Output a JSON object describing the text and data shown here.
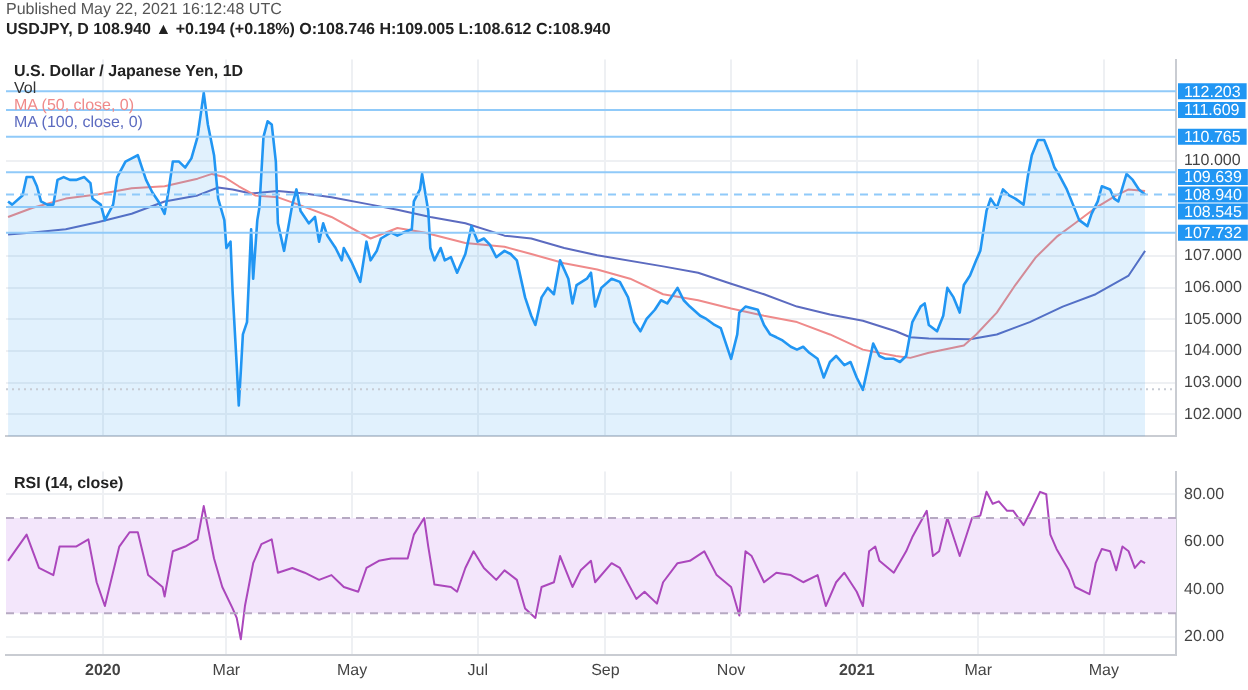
{
  "chart_data": [
    {
      "type": "area",
      "title": "U.S. Dollar / Japanese Yen, 1D",
      "subtitle": "USDJPY, D 108.940 ▲ +0.194 (+0.18%) O:108.746 H:109.005 L:108.612 C:108.940",
      "annotations": [
        "Published May 22, 2021 16:12:48 UTC",
        "Vol"
      ],
      "series": [
        {
          "color": "#2196f3",
          "x": [
            "2019-11-16",
            "2019-11-18",
            "2019-11-23",
            "2019-11-25",
            "2019-11-28",
            "2019-11-30",
            "2019-12-02",
            "2019-12-05",
            "2019-12-08",
            "2019-12-10",
            "2019-12-13",
            "2019-12-16",
            "2019-12-19",
            "2019-12-23",
            "2019-12-26",
            "2019-12-27",
            "2019-12-31",
            "2020-01-02",
            "2020-01-06",
            "2020-01-08",
            "2020-01-12",
            "2020-01-15",
            "2020-01-18",
            "2020-01-20",
            "2020-01-22",
            "2020-01-25",
            "2020-01-28",
            "2020-01-31",
            "2020-02-02",
            "2020-02-04",
            "2020-02-07",
            "2020-02-10",
            "2020-02-13",
            "2020-02-16",
            "2020-02-19",
            "2020-02-21",
            "2020-02-24",
            "2020-02-26",
            "2020-02-29",
            "2020-03-01",
            "2020-03-03",
            "2020-03-04",
            "2020-03-06",
            "2020-03-07",
            "2020-03-08",
            "2020-03-09",
            "2020-03-11",
            "2020-03-13",
            "2020-03-14",
            "2020-03-16",
            "2020-03-17",
            "2020-03-19",
            "2020-03-21",
            "2020-03-23",
            "2020-03-25",
            "2020-03-26",
            "2020-03-29",
            "2020-04-02",
            "2020-04-04",
            "2020-04-06",
            "2020-04-10",
            "2020-04-13",
            "2020-04-15",
            "2020-04-17",
            "2020-04-19",
            "2020-04-23",
            "2020-04-26",
            "2020-04-27",
            "2020-05-01",
            "2020-05-05",
            "2020-05-08",
            "2020-05-10",
            "2020-05-13",
            "2020-05-15",
            "2020-05-20",
            "2020-05-23",
            "2020-05-26",
            "2020-05-30",
            "2020-05-31",
            "2020-06-03",
            "2020-06-04",
            "2020-06-07",
            "2020-06-08",
            "2020-06-10",
            "2020-06-13",
            "2020-06-15",
            "2020-06-18",
            "2020-06-21",
            "2020-06-25",
            "2020-06-28",
            "2020-07-01",
            "2020-07-04",
            "2020-07-07",
            "2020-07-10",
            "2020-07-14",
            "2020-07-17",
            "2020-07-20",
            "2020-07-24",
            "2020-07-27",
            "2020-07-29",
            "2020-08-01",
            "2020-08-04",
            "2020-08-07",
            "2020-08-10",
            "2020-08-14",
            "2020-08-16",
            "2020-08-18",
            "2020-08-23",
            "2020-08-25",
            "2020-08-27",
            "2020-08-30",
            "2020-09-04",
            "2020-09-08",
            "2020-09-12",
            "2020-09-15",
            "2020-09-18",
            "2020-09-21",
            "2020-09-25",
            "2020-09-28",
            "2020-10-01",
            "2020-10-04",
            "2020-10-06",
            "2020-10-09",
            "2020-10-12",
            "2020-10-17",
            "2020-10-20",
            "2020-10-24",
            "2020-10-27",
            "2020-10-28",
            "2020-11-01",
            "2020-11-04",
            "2020-11-05",
            "2020-11-08",
            "2020-11-14",
            "2020-11-17",
            "2020-11-20",
            "2020-11-23",
            "2020-11-26",
            "2020-11-30",
            "2020-12-03",
            "2020-12-06",
            "2020-12-09",
            "2020-12-13",
            "2020-12-16",
            "2020-12-19",
            "2020-12-22",
            "2020-12-26",
            "2020-12-29",
            "2021-01-01",
            "2021-01-04",
            "2021-01-06",
            "2021-01-09",
            "2021-01-12",
            "2021-01-15",
            "2021-01-19",
            "2021-01-22",
            "2021-01-25",
            "2021-01-28",
            "2021-02-01",
            "2021-02-03",
            "2021-02-05",
            "2021-02-09",
            "2021-02-12",
            "2021-02-14",
            "2021-02-17",
            "2021-02-20",
            "2021-02-22",
            "2021-02-25",
            "2021-02-28",
            "2021-03-02",
            "2021-03-05",
            "2021-03-07",
            "2021-03-10",
            "2021-03-13",
            "2021-03-16",
            "2021-03-19",
            "2021-03-23",
            "2021-03-25",
            "2021-03-27",
            "2021-03-30",
            "2021-04-02",
            "2021-04-05",
            "2021-04-07",
            "2021-04-09",
            "2021-04-13",
            "2021-04-16",
            "2021-04-19",
            "2021-04-23",
            "2021-04-25",
            "2021-04-28",
            "2021-04-30",
            "2021-05-04",
            "2021-05-06",
            "2021-05-08",
            "2021-05-12",
            "2021-05-15",
            "2021-05-18",
            "2021-05-21"
          ],
          "values": [
            108.72,
            108.62,
            108.91,
            109.49,
            109.49,
            109.2,
            108.72,
            108.62,
            108.62,
            109.4,
            109.49,
            109.4,
            109.4,
            109.49,
            109.3,
            108.81,
            108.62,
            108.13,
            108.62,
            109.49,
            109.98,
            110.08,
            110.18,
            109.79,
            109.4,
            109.01,
            108.72,
            108.33,
            109.1,
            109.98,
            109.98,
            109.79,
            110.08,
            110.76,
            112.15,
            111.15,
            110.18,
            108.81,
            108.13,
            107.25,
            107.45,
            105.89,
            103.55,
            102.28,
            103.36,
            104.52,
            104.91,
            107.84,
            106.28,
            108.13,
            108.52,
            110.76,
            111.25,
            111.15,
            109.98,
            108.03,
            107.16,
            108.62,
            109.1,
            108.42,
            108.03,
            108.23,
            107.45,
            108.03,
            107.64,
            107.25,
            106.86,
            107.25,
            106.77,
            106.18,
            107.45,
            106.86,
            107.16,
            107.55,
            107.74,
            107.64,
            107.74,
            107.84,
            108.72,
            109.1,
            109.59,
            108.42,
            107.25,
            106.86,
            107.25,
            106.86,
            106.96,
            106.47,
            107.06,
            107.94,
            107.45,
            107.55,
            107.35,
            106.96,
            107.16,
            107.06,
            106.86,
            105.69,
            105.11,
            104.82,
            105.69,
            105.99,
            105.79,
            106.86,
            106.28,
            105.5,
            106.08,
            106.28,
            106.47,
            105.4,
            105.99,
            106.28,
            106.18,
            105.69,
            104.91,
            104.62,
            105.01,
            105.3,
            105.6,
            105.5,
            105.79,
            105.99,
            105.6,
            105.4,
            105.11,
            105.01,
            104.82,
            104.72,
            104.52,
            103.75,
            104.52,
            105.21,
            105.4,
            105.3,
            104.82,
            104.52,
            104.43,
            104.33,
            104.13,
            104.04,
            104.13,
            103.94,
            103.75,
            103.16,
            103.65,
            103.84,
            103.55,
            103.65,
            103.16,
            102.77,
            103.36,
            104.23,
            103.84,
            103.75,
            103.75,
            103.65,
            103.84,
            104.91,
            105.4,
            105.5,
            104.82,
            104.62,
            105.11,
            105.99,
            105.69,
            105.21,
            106.08,
            106.38,
            106.86,
            107.16,
            108.42,
            108.81,
            108.52,
            109.1,
            108.91,
            108.81,
            108.62,
            109.49,
            110.18,
            110.66,
            110.66,
            110.18,
            109.79,
            109.59,
            109.1,
            108.62,
            108.13,
            107.94,
            108.33,
            108.72,
            109.2,
            109.1,
            108.81,
            108.72,
            109.59,
            109.4,
            109.1,
            108.94
          ]
        },
        {
          "name": "MA (50, close, 0)",
          "type": "line",
          "color": "#ef8a8a",
          "x": [
            "2019-11-16",
            "2019-11-28",
            "2019-12-14",
            "2019-12-30",
            "2020-01-15",
            "2020-01-31",
            "2020-02-16",
            "2020-02-23",
            "2020-02-29",
            "2020-03-07",
            "2020-03-15",
            "2020-03-26",
            "2020-04-05",
            "2020-04-21",
            "2020-05-10",
            "2020-05-23",
            "2020-06-05",
            "2020-06-25",
            "2020-07-14",
            "2020-07-27",
            "2020-08-12",
            "2020-08-28",
            "2020-09-13",
            "2020-09-29",
            "2020-10-16",
            "2020-11-01",
            "2020-11-17",
            "2020-12-03",
            "2020-12-19",
            "2021-01-04",
            "2021-01-20",
            "2021-01-27",
            "2021-02-05",
            "2021-02-22",
            "2021-02-28",
            "2021-03-10",
            "2021-03-19",
            "2021-03-29",
            "2021-04-08",
            "2021-04-17",
            "2021-04-27",
            "2021-05-07",
            "2021-05-13",
            "2021-05-21"
          ],
          "values": [
            108.23,
            108.52,
            108.81,
            108.95,
            109.14,
            109.2,
            109.44,
            109.59,
            109.49,
            109.2,
            108.91,
            108.85,
            108.62,
            108.23,
            107.55,
            107.88,
            107.74,
            107.41,
            107.29,
            107.06,
            106.77,
            106.57,
            106.28,
            105.79,
            105.6,
            105.34,
            105.11,
            104.91,
            104.52,
            104.04,
            103.84,
            103.78,
            103.94,
            104.17,
            104.52,
            105.21,
            106.08,
            106.96,
            107.6,
            108.03,
            108.52,
            108.91,
            109.1,
            109.05
          ]
        },
        {
          "name": "MA (100, close, 0)",
          "type": "line",
          "color": "#5c6bc0",
          "x": [
            "2019-11-16",
            "2019-11-28",
            "2019-12-14",
            "2019-12-30",
            "2020-01-15",
            "2020-01-31",
            "2020-02-16",
            "2020-02-26",
            "2020-03-04",
            "2020-03-13",
            "2020-03-26",
            "2020-04-08",
            "2020-04-21",
            "2020-05-10",
            "2020-05-23",
            "2020-06-08",
            "2020-06-25",
            "2020-07-14",
            "2020-07-27",
            "2020-08-12",
            "2020-08-28",
            "2020-09-29",
            "2020-10-16",
            "2020-11-01",
            "2020-11-17",
            "2020-12-03",
            "2020-12-19",
            "2021-01-04",
            "2021-01-20",
            "2021-01-27",
            "2021-02-05",
            "2021-02-25",
            "2021-03-10",
            "2021-03-26",
            "2021-04-11",
            "2021-04-27",
            "2021-05-13",
            "2021-05-21"
          ],
          "values": [
            107.68,
            107.74,
            107.84,
            108.07,
            108.33,
            108.72,
            108.91,
            109.16,
            109.1,
            108.97,
            109.05,
            108.97,
            108.85,
            108.62,
            108.46,
            108.23,
            108.03,
            107.64,
            107.55,
            107.25,
            107.02,
            106.67,
            106.47,
            106.12,
            105.79,
            105.4,
            105.15,
            104.95,
            104.62,
            104.43,
            104.39,
            104.37,
            104.52,
            104.91,
            105.4,
            105.79,
            106.38,
            107.16
          ]
        }
      ],
      "xlim": [
        "2019-11-15",
        "2021-06-05"
      ],
      "xticks": [
        {
          "value": "2020-01-01",
          "label": null
        },
        {
          "value": "2020-03-01",
          "label": null
        },
        {
          "value": "2020-05-01",
          "label": null
        },
        {
          "value": "2020-07-01",
          "label": null
        },
        {
          "value": "2020-09-01",
          "label": null
        },
        {
          "value": "2020-11-01",
          "label": null
        },
        {
          "value": "2021-01-01",
          "label": null
        },
        {
          "value": "2021-03-01",
          "label": null
        },
        {
          "value": "2021-05-01",
          "label": null
        }
      ],
      "ylim": [
        101.3,
        113.2
      ],
      "yticks": [
        {
          "value": 102,
          "label": "102.000"
        },
        {
          "value": 103,
          "label": "103.000"
        },
        {
          "value": 104,
          "label": "104.000"
        },
        {
          "value": 105,
          "label": "105.000"
        },
        {
          "value": 106,
          "label": "106.000"
        },
        {
          "value": 107,
          "label": "107.000"
        },
        {
          "value": 110,
          "label": "110.000"
        }
      ],
      "tick_labels": "y",
      "grid": true,
      "legend": "top left",
      "marker": "none",
      "ref_lines": [
        {
          "axis": "y",
          "value": 112.203,
          "label": "112.203",
          "color": "#90caf9"
        },
        {
          "axis": "y",
          "value": 111.609,
          "label": "111.609",
          "color": "#90caf9"
        },
        {
          "axis": "y",
          "value": 110.765,
          "label": "110.765",
          "color": "#90caf9"
        },
        {
          "axis": "y",
          "value": 109.639,
          "label": "109.639",
          "color": "#90caf9"
        },
        {
          "axis": "y",
          "value": 108.94,
          "label": "108.940",
          "color": "#90caf9",
          "line_style": "dashed"
        },
        {
          "axis": "y",
          "value": 108.545,
          "label": "108.545",
          "color": "#90caf9"
        },
        {
          "axis": "y",
          "value": 107.732,
          "label": "107.732",
          "color": "#90caf9"
        },
        {
          "axis": "y",
          "value": 102.79,
          "color": "#c8ccd4",
          "line_style": "dotted"
        }
      ]
    },
    {
      "type": "line",
      "title": "RSI (14, close)",
      "series": [
        {
          "color": "#ab47bc",
          "x": [
            "2019-11-16",
            "2019-11-25",
            "2019-12-01",
            "2019-12-08",
            "2019-12-11",
            "2019-12-19",
            "2019-12-25",
            "2019-12-29",
            "2020-01-02",
            "2020-01-09",
            "2020-01-14",
            "2020-01-18",
            "2020-01-23",
            "2020-01-30",
            "2020-01-31",
            "2020-02-04",
            "2020-02-10",
            "2020-02-16",
            "2020-02-19",
            "2020-02-24",
            "2020-02-28",
            "2020-03-04",
            "2020-03-06",
            "2020-03-08",
            "2020-03-10",
            "2020-03-14",
            "2020-03-18",
            "2020-03-23",
            "2020-03-26",
            "2020-04-02",
            "2020-04-08",
            "2020-04-15",
            "2020-04-21",
            "2020-04-27",
            "2020-05-04",
            "2020-05-08",
            "2020-05-14",
            "2020-05-20",
            "2020-05-28",
            "2020-05-31",
            "2020-06-05",
            "2020-06-07",
            "2020-06-10",
            "2020-06-18",
            "2020-06-21",
            "2020-06-25",
            "2020-06-29",
            "2020-07-04",
            "2020-07-10",
            "2020-07-14",
            "2020-07-20",
            "2020-07-24",
            "2020-07-29",
            "2020-08-01",
            "2020-08-07",
            "2020-08-10",
            "2020-08-16",
            "2020-08-20",
            "2020-08-25",
            "2020-08-27",
            "2020-09-04",
            "2020-09-08",
            "2020-09-16",
            "2020-09-20",
            "2020-09-26",
            "2020-09-29",
            "2020-10-06",
            "2020-10-12",
            "2020-10-19",
            "2020-10-25",
            "2020-11-01",
            "2020-11-05",
            "2020-11-08",
            "2020-11-11",
            "2020-11-17",
            "2020-11-23",
            "2020-11-30",
            "2020-12-06",
            "2020-12-13",
            "2020-12-17",
            "2020-12-22",
            "2020-12-26",
            "2021-01-01",
            "2021-01-04",
            "2021-01-07",
            "2021-01-10",
            "2021-01-12",
            "2021-01-19",
            "2021-01-25",
            "2021-01-28",
            "2021-02-04",
            "2021-02-07",
            "2021-02-10",
            "2021-02-14",
            "2021-02-20",
            "2021-02-26",
            "2021-03-02",
            "2021-03-05",
            "2021-03-08",
            "2021-03-11",
            "2021-03-15",
            "2021-03-18",
            "2021-03-23",
            "2021-03-26",
            "2021-03-31",
            "2021-04-03",
            "2021-04-05",
            "2021-04-08",
            "2021-04-14",
            "2021-04-17",
            "2021-04-24",
            "2021-04-27",
            "2021-04-30",
            "2021-05-04",
            "2021-05-07",
            "2021-05-10",
            "2021-05-13",
            "2021-05-16",
            "2021-05-19",
            "2021-05-21"
          ],
          "values": [
            52,
            63,
            49,
            46,
            58,
            58,
            61,
            43,
            33,
            58,
            64,
            64,
            46,
            41,
            37,
            56,
            58,
            61,
            75,
            53,
            41,
            32,
            28,
            19,
            33,
            51,
            59,
            61,
            47,
            49,
            47,
            44,
            46,
            41,
            39,
            49,
            52,
            53,
            53,
            63,
            70,
            58,
            42,
            41,
            39,
            49,
            56,
            49,
            44,
            48,
            44,
            32,
            28,
            41,
            43,
            54,
            41,
            48,
            52,
            43,
            51,
            49,
            36,
            39,
            34,
            43,
            51,
            52,
            56,
            46,
            41,
            29,
            56,
            54,
            43,
            47,
            46,
            43,
            46,
            33,
            43,
            47,
            39,
            33,
            56,
            58,
            52,
            47,
            56,
            62,
            73,
            54,
            56,
            70,
            54,
            70,
            71,
            81,
            76,
            77,
            73,
            73,
            67,
            72,
            81,
            80,
            63,
            57,
            48,
            41,
            38,
            51,
            57,
            56,
            48,
            58,
            56,
            49,
            52,
            51
          ]
        }
      ],
      "xlim": [
        "2019-11-15",
        "2021-06-05"
      ],
      "xticks": [
        {
          "value": "2020-01-01",
          "label": "2020"
        },
        {
          "value": "2020-03-01",
          "label": "Mar"
        },
        {
          "value": "2020-05-01",
          "label": "May"
        },
        {
          "value": "2020-07-01",
          "label": "Jul"
        },
        {
          "value": "2020-09-01",
          "label": "Sep"
        },
        {
          "value": "2020-11-01",
          "label": "Nov"
        },
        {
          "value": "2021-01-01",
          "label": "2021"
        },
        {
          "value": "2021-03-01",
          "label": "Mar"
        },
        {
          "value": "2021-05-01",
          "label": "May"
        }
      ],
      "ylim": [
        12.5,
        89.5
      ],
      "yticks": [
        {
          "value": 20,
          "label": "20.00"
        },
        {
          "value": 40,
          "label": "40.00"
        },
        {
          "value": 60,
          "label": "60.00"
        },
        {
          "value": 80,
          "label": "80.00"
        }
      ],
      "grid": true,
      "marker": "none",
      "bands": [
        {
          "axis": "y",
          "from": 30,
          "to": 70,
          "color": "#f3e6fb"
        }
      ],
      "ref_lines": [
        {
          "axis": "y",
          "value": 70,
          "color": "#b6a9c2",
          "line_style": "dashed"
        },
        {
          "axis": "y",
          "value": 30,
          "color": "#b6a9c2",
          "line_style": "dashed"
        }
      ]
    }
  ]
}
